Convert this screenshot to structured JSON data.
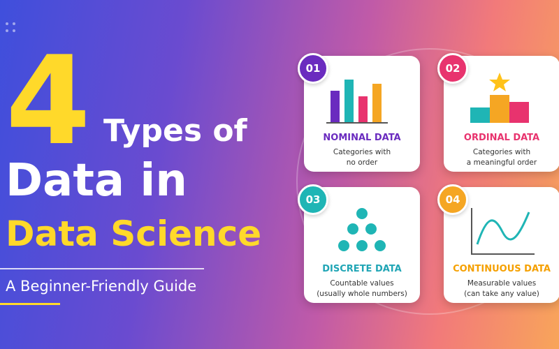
{
  "header": {
    "number": "4",
    "line1": "Types of",
    "line2": "Data in",
    "line3": "Data Science",
    "subtitle": "A Beginner-Friendly Guide"
  },
  "cards": [
    {
      "badge": "01",
      "title": "NOMINAL DATA",
      "description": [
        "Categories with",
        "no order"
      ]
    },
    {
      "badge": "02",
      "title": "ORDINAL DATA",
      "description": [
        "Categories with",
        "a meaningful order"
      ]
    },
    {
      "badge": "03",
      "title": "DISCRETE DATA",
      "description": [
        "Countable values",
        "(usually whole numbers)"
      ]
    },
    {
      "badge": "04",
      "title": "CONTINUOUS DATA",
      "description": [
        "Measurable values",
        "(can take any value)"
      ]
    }
  ]
}
